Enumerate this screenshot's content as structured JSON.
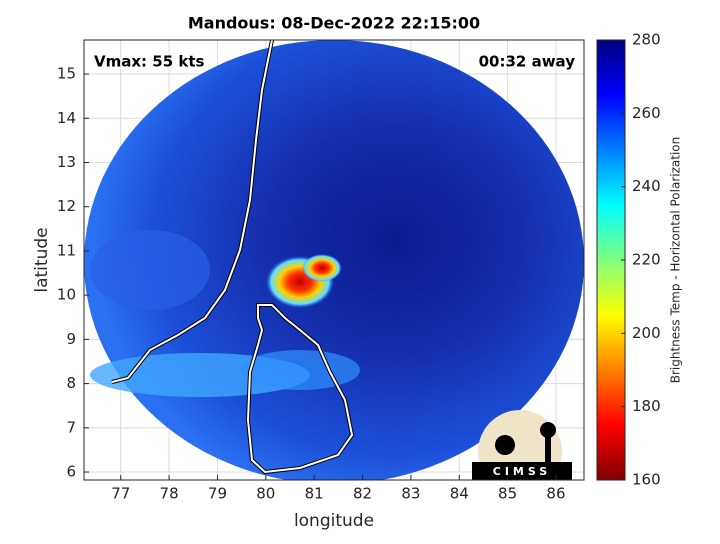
{
  "chart_data": {
    "type": "image",
    "title": "Mandous: 08-Dec-2022 22:15:00",
    "annotations": [
      "Vmax: 55 kts",
      "00:32 away"
    ],
    "xlabel": "longitude",
    "ylabel": "latitude",
    "xlim": [
      76.24,
      86.58
    ],
    "ylim": [
      5.82,
      15.77
    ],
    "xticks": [
      77,
      78,
      79,
      80,
      81,
      82,
      83,
      84,
      85,
      86
    ],
    "yticks": [
      6,
      7,
      8,
      9,
      10,
      11,
      12,
      13,
      14,
      15
    ],
    "grid": true,
    "colorbar": {
      "label": "Brightness Temp - Horizontal Polarization",
      "lim": [
        160,
        280
      ],
      "ticks": [
        160,
        180,
        200,
        220,
        240,
        260,
        280
      ]
    },
    "logo": "CIMSS"
  }
}
